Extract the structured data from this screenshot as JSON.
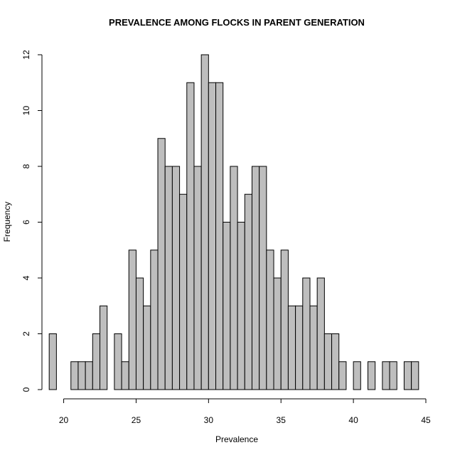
{
  "chart_data": {
    "type": "bar",
    "title": "PREVALENCE AMONG FLOCKS IN PARENT GENERATION",
    "xlabel": "Prevalence",
    "ylabel": "Frequency",
    "bin_start": 19,
    "bin_width": 0.5,
    "values": [
      2,
      0,
      0,
      1,
      1,
      1,
      2,
      3,
      0,
      2,
      1,
      5,
      4,
      3,
      5,
      9,
      8,
      8,
      7,
      11,
      8,
      12,
      11,
      11,
      6,
      8,
      6,
      7,
      8,
      8,
      5,
      4,
      5,
      3,
      3,
      4,
      3,
      4,
      2,
      2,
      1,
      0,
      1,
      0,
      1,
      0,
      1,
      1,
      0,
      1,
      1
    ],
    "xlim": [
      19,
      45
    ],
    "ylim": [
      0,
      12
    ],
    "x_ticks": [
      20,
      25,
      30,
      35,
      40,
      45
    ],
    "y_ticks": [
      0,
      2,
      4,
      6,
      8,
      10,
      12
    ],
    "bar_color": "#bebebe",
    "grid": false,
    "legend": "none"
  }
}
